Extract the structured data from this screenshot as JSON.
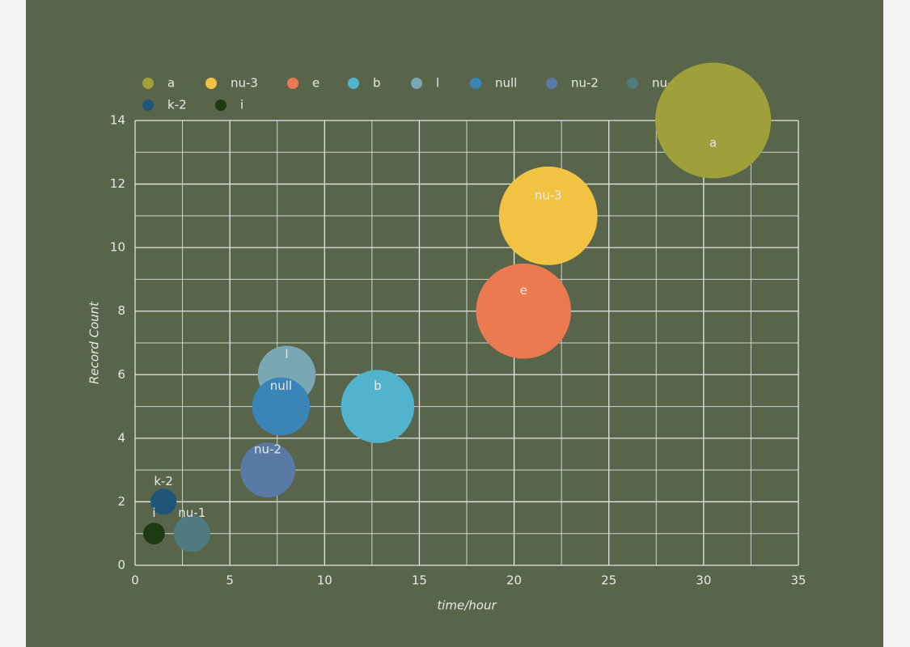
{
  "chart_data": {
    "type": "bubble",
    "x_label": "time/hour",
    "y_label": "Record Count",
    "xlim": [
      0,
      35
    ],
    "xticks": [
      0,
      5,
      10,
      15,
      20,
      25,
      30,
      35
    ],
    "ylim": [
      0,
      14
    ],
    "yticks": [
      0,
      2,
      4,
      6,
      8,
      10,
      12,
      14
    ],
    "grid": true,
    "series": [
      {
        "name": "a",
        "color": "#a0a03a",
        "x": 30.5,
        "y": 14,
        "size": 20
      },
      {
        "name": "nu-3",
        "color": "#f2c243",
        "x": 21.8,
        "y": 11,
        "size": 14.5
      },
      {
        "name": "e",
        "color": "#ec7a50",
        "x": 20.5,
        "y": 8,
        "size": 13.5
      },
      {
        "name": "b",
        "color": "#52b3cf",
        "x": 12.8,
        "y": 5,
        "size": 8
      },
      {
        "name": "l",
        "color": "#79a7b3",
        "x": 8.0,
        "y": 6,
        "size": 5
      },
      {
        "name": "null",
        "color": "#3a84b8",
        "x": 7.7,
        "y": 5,
        "size": 5
      },
      {
        "name": "nu-2",
        "color": "#5a7aa6",
        "x": 7.0,
        "y": 3,
        "size": 4.5
      },
      {
        "name": "nu-1",
        "color": "#4e7a80",
        "x": 3.0,
        "y": 1,
        "size": 2
      },
      {
        "name": "k-2",
        "color": "#1f5578",
        "x": 1.5,
        "y": 2,
        "size": 1
      },
      {
        "name": "i",
        "color": "#1e3a12",
        "x": 1.0,
        "y": 1,
        "size": 0.7
      }
    ]
  }
}
